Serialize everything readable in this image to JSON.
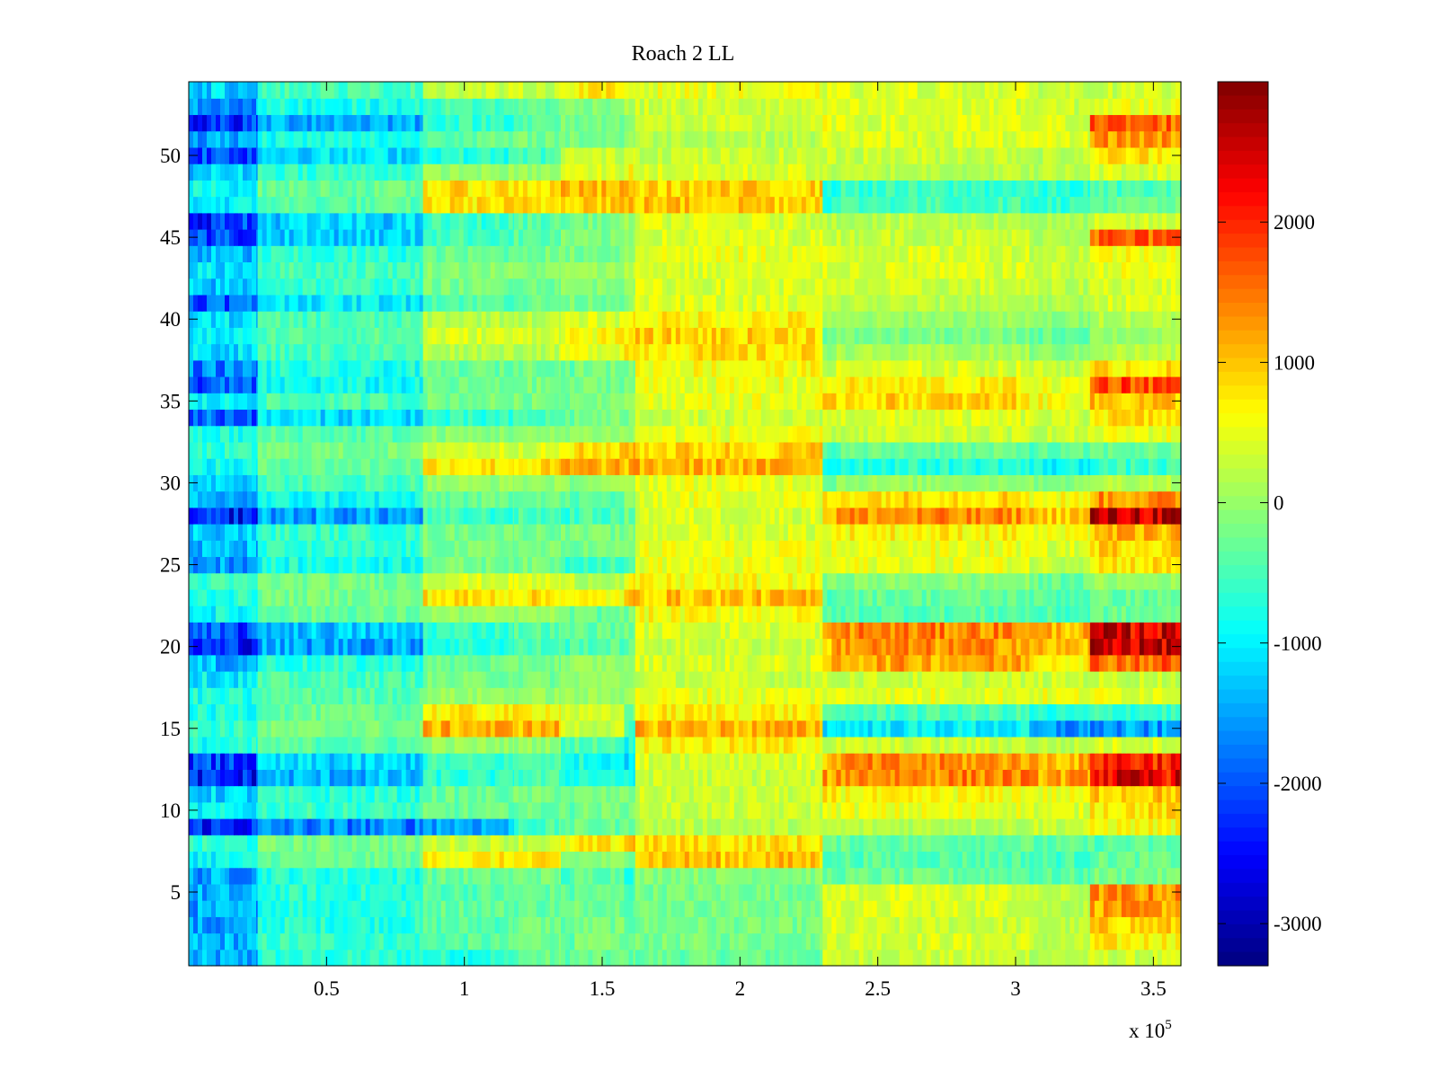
{
  "chart_data": {
    "type": "heatmap",
    "title": "Roach 2 LL",
    "xlabel": "",
    "ylabel": "",
    "xlim": [
      0,
      360000
    ],
    "ylim": [
      0.5,
      54.5
    ],
    "x_multiplier": "x 10",
    "x_multiplier_exponent": "5",
    "x_ticks": [
      {
        "label": "0.5",
        "value": 50000
      },
      {
        "label": "1",
        "value": 100000
      },
      {
        "label": "1.5",
        "value": 150000
      },
      {
        "label": "2",
        "value": 200000
      },
      {
        "label": "2.5",
        "value": 250000
      },
      {
        "label": "3",
        "value": 300000
      },
      {
        "label": "3.5",
        "value": 350000
      }
    ],
    "y_ticks": [
      {
        "label": "5",
        "value": 5
      },
      {
        "label": "10",
        "value": 10
      },
      {
        "label": "15",
        "value": 15
      },
      {
        "label": "20",
        "value": 20
      },
      {
        "label": "25",
        "value": 25
      },
      {
        "label": "30",
        "value": 30
      },
      {
        "label": "35",
        "value": 35
      },
      {
        "label": "40",
        "value": 40
      },
      {
        "label": "45",
        "value": 45
      },
      {
        "label": "50",
        "value": 50
      }
    ],
    "colorbar": {
      "colormap": "jet",
      "range": [
        -3300,
        3000
      ],
      "ticks": [
        {
          "label": "2000",
          "value": 2000
        },
        {
          "label": "1000",
          "value": 1000
        },
        {
          "label": "0",
          "value": 0
        },
        {
          "label": "-1000",
          "value": -1000
        },
        {
          "label": "-2000",
          "value": -2000
        },
        {
          "label": "-3000",
          "value": -3000
        }
      ]
    },
    "rows": 54,
    "x_segments": [
      0,
      25000,
      85000,
      118000,
      135000,
      140000,
      158000,
      162000,
      230000,
      235000,
      305000,
      327000,
      360000
    ],
    "segment_values": [
      [
        -1500,
        -700,
        -700,
        -300,
        -300,
        -300,
        -300,
        -300,
        300,
        300,
        200,
        300
      ],
      [
        -1400,
        -600,
        -400,
        -200,
        -300,
        -200,
        -300,
        -200,
        400,
        400,
        200,
        700
      ],
      [
        -1600,
        -700,
        -400,
        -200,
        -300,
        -200,
        -300,
        -200,
        400,
        300,
        200,
        900
      ],
      [
        -1500,
        -700,
        -300,
        -300,
        -300,
        -200,
        -300,
        -200,
        500,
        400,
        200,
        1200
      ],
      [
        -1500,
        -700,
        -400,
        -300,
        -400,
        -300,
        -400,
        -200,
        400,
        400,
        200,
        1300
      ],
      [
        -1500,
        -700,
        -300,
        -200,
        -500,
        -300,
        -600,
        -100,
        -300,
        -300,
        -400,
        -200
      ],
      [
        -900,
        -300,
        700,
        700,
        -100,
        -100,
        -100,
        1000,
        -400,
        -400,
        -500,
        -300
      ],
      [
        -700,
        -200,
        300,
        300,
        500,
        700,
        1100,
        800,
        -300,
        -300,
        -400,
        -400
      ],
      [
        -2300,
        -1700,
        -1400,
        -500,
        -300,
        -300,
        -200,
        200,
        200,
        200,
        300,
        600
      ],
      [
        -1000,
        -600,
        -300,
        -300,
        -300,
        -200,
        -200,
        300,
        500,
        500,
        400,
        800
      ],
      [
        -1200,
        -700,
        -300,
        -200,
        -200,
        -200,
        -200,
        300,
        700,
        600,
        500,
        1000
      ],
      [
        -2400,
        -1400,
        -700,
        -500,
        -800,
        -700,
        -1000,
        300,
        1200,
        1400,
        1200,
        2300
      ],
      [
        -2200,
        -1200,
        -600,
        -400,
        -900,
        -800,
        -1000,
        400,
        1100,
        1300,
        1100,
        2100
      ],
      [
        -800,
        -400,
        0,
        0,
        -600,
        -400,
        -800,
        700,
        200,
        300,
        200,
        400
      ],
      [
        -600,
        -200,
        1100,
        1100,
        300,
        300,
        -700,
        1100,
        -1100,
        -1000,
        -1600,
        -1600
      ],
      [
        -800,
        -300,
        700,
        700,
        400,
        300,
        -200,
        700,
        -600,
        -500,
        -800,
        -600
      ],
      [
        -800,
        -400,
        0,
        0,
        0,
        0,
        200,
        500,
        500,
        500,
        500,
        500
      ],
      [
        -1000,
        -500,
        -200,
        -200,
        -100,
        0,
        0,
        300,
        300,
        300,
        300,
        300
      ],
      [
        -1400,
        -700,
        -300,
        -200,
        -100,
        0,
        0,
        400,
        1000,
        1200,
        800,
        1600
      ],
      [
        -2300,
        -1500,
        -700,
        -500,
        -500,
        -400,
        -300,
        300,
        1000,
        1300,
        1000,
        2600
      ],
      [
        -2100,
        -1300,
        -600,
        -400,
        -400,
        -300,
        -200,
        400,
        1100,
        1400,
        1100,
        2400
      ],
      [
        -900,
        -300,
        0,
        0,
        -300,
        -300,
        -200,
        600,
        -500,
        -400,
        -500,
        -300
      ],
      [
        -700,
        -200,
        800,
        800,
        700,
        600,
        1000,
        1000,
        -400,
        -300,
        -400,
        -300
      ],
      [
        -600,
        -200,
        400,
        400,
        300,
        200,
        600,
        600,
        -200,
        -100,
        -300,
        0
      ],
      [
        -1500,
        -800,
        -200,
        -200,
        -600,
        -500,
        -500,
        500,
        400,
        500,
        300,
        800
      ],
      [
        -1400,
        -700,
        -200,
        -200,
        -300,
        -200,
        -200,
        500,
        500,
        500,
        400,
        900
      ],
      [
        -1200,
        -600,
        -200,
        -200,
        -200,
        -200,
        -200,
        400,
        600,
        700,
        500,
        1100
      ],
      [
        -2400,
        -1500,
        -600,
        -500,
        -600,
        -500,
        -300,
        400,
        1000,
        1300,
        1000,
        2600
      ],
      [
        -1500,
        -900,
        -300,
        -200,
        -400,
        -400,
        -200,
        500,
        700,
        900,
        600,
        1300
      ],
      [
        -1100,
        -500,
        0,
        0,
        -100,
        0,
        0,
        500,
        -200,
        0,
        -100,
        200
      ],
      [
        -900,
        -300,
        800,
        800,
        1200,
        1100,
        1100,
        1100,
        -800,
        -700,
        -900,
        -600
      ],
      [
        -700,
        -200,
        400,
        400,
        700,
        800,
        1100,
        900,
        -400,
        -300,
        -400,
        -300
      ],
      [
        -800,
        -400,
        -100,
        -100,
        0,
        0,
        0,
        500,
        300,
        300,
        300,
        500
      ],
      [
        -1900,
        -1100,
        -700,
        -500,
        -300,
        -200,
        -200,
        300,
        400,
        400,
        300,
        800
      ],
      [
        -1000,
        -500,
        -200,
        -200,
        -200,
        -100,
        -100,
        500,
        800,
        900,
        600,
        1000
      ],
      [
        -2000,
        -900,
        -300,
        -200,
        -300,
        -200,
        -200,
        500,
        600,
        700,
        500,
        1800
      ],
      [
        -1700,
        -800,
        -300,
        -200,
        -300,
        -200,
        -200,
        600,
        300,
        400,
        300,
        800
      ],
      [
        -1100,
        -500,
        200,
        200,
        500,
        500,
        800,
        800,
        0,
        100,
        -100,
        200
      ],
      [
        -1000,
        -400,
        400,
        400,
        600,
        600,
        900,
        900,
        -300,
        -200,
        -300,
        0
      ],
      [
        -1100,
        -500,
        200,
        200,
        400,
        400,
        700,
        700,
        0,
        0,
        -100,
        200
      ],
      [
        -1900,
        -1000,
        -400,
        -300,
        -200,
        -200,
        0,
        400,
        200,
        200,
        100,
        400
      ],
      [
        -1300,
        -600,
        -200,
        -200,
        -100,
        -100,
        100,
        400,
        300,
        300,
        200,
        400
      ],
      [
        -1100,
        -500,
        -100,
        -100,
        0,
        0,
        200,
        400,
        400,
        400,
        300,
        500
      ],
      [
        -1400,
        -700,
        -300,
        -200,
        -200,
        -200,
        0,
        500,
        400,
        400,
        300,
        600
      ],
      [
        -2100,
        -1200,
        -500,
        -400,
        -200,
        -200,
        0,
        400,
        300,
        300,
        200,
        1600
      ],
      [
        -2200,
        -1200,
        -600,
        -400,
        -300,
        -200,
        0,
        400,
        200,
        200,
        100,
        300
      ],
      [
        -1000,
        -400,
        800,
        800,
        1000,
        1000,
        1000,
        1000,
        -600,
        -500,
        -600,
        -300
      ],
      [
        -900,
        -300,
        800,
        800,
        1100,
        1000,
        900,
        900,
        -700,
        -600,
        -700,
        -500
      ],
      [
        -1200,
        -600,
        0,
        0,
        400,
        400,
        600,
        400,
        200,
        200,
        200,
        400
      ],
      [
        -2000,
        -1100,
        -700,
        -500,
        300,
        300,
        500,
        300,
        300,
        300,
        200,
        800
      ],
      [
        -1500,
        -800,
        -300,
        -200,
        -200,
        -200,
        0,
        200,
        400,
        400,
        400,
        1300
      ],
      [
        -2300,
        -1400,
        -600,
        -400,
        -200,
        -200,
        0,
        300,
        500,
        400,
        400,
        1600
      ],
      [
        -1600,
        -800,
        -500,
        -300,
        -100,
        -100,
        100,
        300,
        400,
        400,
        300,
        500
      ],
      [
        -1200,
        -500,
        300,
        300,
        700,
        700,
        500,
        500,
        400,
        400,
        300,
        300
      ]
    ]
  }
}
